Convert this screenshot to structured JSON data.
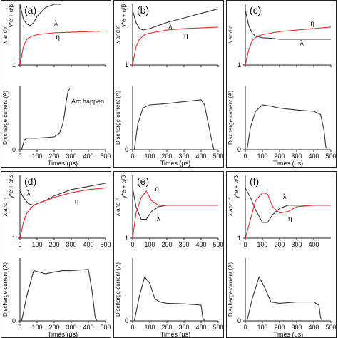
{
  "colors": {
    "lambda": "#333333",
    "eta": "#e03030",
    "current": "#333333"
  },
  "chart_data": [
    {
      "panel": "(a)",
      "type": "line",
      "xlabel": "",
      "ylabel": "λ and η",
      "ylabel_alt": "γ*e + α/β",
      "xlim": [
        0,
        500
      ],
      "ylim": [
        1,
        3
      ],
      "x_ticks": [],
      "y_ticks": [
        1
      ],
      "series": [
        {
          "name": "λ",
          "x": [
            0,
            20,
            40,
            60,
            80,
            100,
            150,
            200,
            240
          ],
          "y": [
            3.0,
            2.5,
            2.35,
            2.3,
            2.4,
            2.6,
            2.9,
            3.0,
            3.0
          ]
        },
        {
          "name": "η",
          "x": [
            0,
            20,
            40,
            70,
            100,
            150,
            200,
            300,
            400,
            500
          ],
          "y": [
            1.0,
            1.6,
            1.85,
            1.95,
            2.0,
            2.03,
            2.06,
            2.08,
            2.1,
            2.12
          ]
        }
      ],
      "label_pos": {
        "λ": [
          200,
          2.3
        ],
        "η": [
          210,
          1.85
        ]
      }
    },
    {
      "panel": "(b)",
      "type": "line",
      "xlabel": "",
      "ylabel": "λ and η",
      "ylabel_alt": "γ*e + α/β",
      "xlim": [
        0,
        500
      ],
      "ylim": [
        1,
        3
      ],
      "x_ticks": [],
      "y_ticks": [
        1
      ],
      "series": [
        {
          "name": "λ",
          "x": [
            0,
            20,
            40,
            60,
            100,
            150,
            200,
            300,
            400,
            500
          ],
          "y": [
            2.8,
            2.4,
            2.2,
            2.15,
            2.2,
            2.3,
            2.4,
            2.55,
            2.7,
            2.85
          ]
        },
        {
          "name": "η",
          "x": [
            0,
            20,
            40,
            70,
            100,
            150,
            200,
            300,
            400,
            500
          ],
          "y": [
            1.0,
            1.6,
            1.85,
            2.0,
            2.05,
            2.1,
            2.15,
            2.2,
            2.22,
            2.25
          ]
        }
      ],
      "label_pos": {
        "λ": [
          210,
          2.2
        ],
        "η": [
          300,
          1.9
        ]
      }
    },
    {
      "panel": "(c)",
      "type": "line",
      "xlabel": "",
      "ylabel": "λ and η",
      "xlim": [
        0,
        500
      ],
      "ylim": [
        1,
        3
      ],
      "x_ticks": [],
      "y_ticks": [
        1
      ],
      "series": [
        {
          "name": "λ",
          "x": [
            0,
            20,
            40,
            60,
            100,
            150,
            200,
            300,
            400,
            500
          ],
          "y": [
            2.8,
            2.3,
            2.05,
            1.95,
            1.9,
            1.88,
            1.85,
            1.85,
            1.85,
            1.85
          ]
        },
        {
          "name": "η",
          "x": [
            0,
            20,
            40,
            70,
            100,
            150,
            200,
            300,
            400,
            500
          ],
          "y": [
            1.0,
            1.5,
            1.8,
            1.95,
            2.0,
            2.05,
            2.1,
            2.15,
            2.2,
            2.25
          ]
        }
      ],
      "label_pos": {
        "λ": [
          320,
          1.65
        ],
        "η": [
          380,
          2.3
        ]
      }
    },
    {
      "panel": "",
      "type": "line",
      "xlabel": "Times (μs)",
      "ylabel": "Discharge current (A)",
      "xlim": [
        0,
        500
      ],
      "ylim": [
        0,
        1
      ],
      "x_ticks": [
        0,
        100,
        200,
        300,
        400,
        500
      ],
      "y_ticks": [
        0
      ],
      "annotation": "Arc happen",
      "series": [
        {
          "name": "",
          "x": [
            0,
            10,
            25,
            40,
            100,
            150,
            200,
            230,
            250,
            260,
            270,
            280,
            290
          ],
          "y": [
            0,
            0,
            0.15,
            0.18,
            0.18,
            0.19,
            0.2,
            0.25,
            0.4,
            0.55,
            0.75,
            0.9,
            0.95
          ]
        }
      ]
    },
    {
      "panel": "",
      "type": "line",
      "xlabel": "Times (μs)",
      "ylabel": "Discharge current (A)",
      "xlim": [
        0,
        500
      ],
      "ylim": [
        0,
        1
      ],
      "x_ticks": [
        0,
        100,
        200,
        300,
        400,
        500
      ],
      "y_ticks": [
        0
      ],
      "series": [
        {
          "name": "",
          "x": [
            0,
            10,
            30,
            60,
            100,
            200,
            300,
            400,
            420,
            450,
            470,
            475
          ],
          "y": [
            0,
            0,
            0.4,
            0.65,
            0.7,
            0.72,
            0.75,
            0.78,
            0.7,
            0.3,
            0.05,
            0
          ]
        }
      ]
    },
    {
      "panel": "",
      "type": "line",
      "xlabel": "Times (μs)",
      "ylabel": "Discharge current (A)",
      "xlim": [
        0,
        500
      ],
      "ylim": [
        0,
        1
      ],
      "x_ticks": [
        0,
        100,
        200,
        300,
        400,
        500
      ],
      "y_ticks": [
        0
      ],
      "series": [
        {
          "name": "",
          "x": [
            0,
            10,
            30,
            60,
            100,
            150,
            200,
            300,
            400,
            440,
            460,
            470,
            480
          ],
          "y": [
            0,
            0,
            0.35,
            0.6,
            0.7,
            0.68,
            0.65,
            0.62,
            0.6,
            0.55,
            0.3,
            0.05,
            0
          ]
        }
      ]
    },
    {
      "panel": "(d)",
      "type": "line",
      "xlabel": "",
      "ylabel": "λ and η",
      "ylabel_alt": "γ*e + α/β",
      "xlim": [
        0,
        500
      ],
      "ylim": [
        1,
        3
      ],
      "x_ticks": [
        0,
        100,
        200,
        300,
        400,
        500
      ],
      "y_ticks": [
        1
      ],
      "series": [
        {
          "name": "λ",
          "x": [
            0,
            20,
            50,
            80,
            100,
            150,
            200,
            300,
            400,
            500
          ],
          "y": [
            2.5,
            2.3,
            2.1,
            2.05,
            2.1,
            2.2,
            2.35,
            2.55,
            2.65,
            2.75
          ]
        },
        {
          "name": "η",
          "x": [
            0,
            20,
            40,
            70,
            100,
            150,
            200,
            300,
            400,
            500
          ],
          "y": [
            1.0,
            1.5,
            1.8,
            2.0,
            2.1,
            2.2,
            2.3,
            2.45,
            2.55,
            2.6
          ]
        }
      ],
      "label_pos": {
        "λ": [
          40,
          2.35
        ],
        "η": [
          320,
          2.1
        ]
      }
    },
    {
      "panel": "(e)",
      "type": "line",
      "xlabel": "",
      "ylabel": "λ and η",
      "ylabel_alt": "γ*e + α/β",
      "xlim": [
        0,
        500
      ],
      "ylim": [
        1,
        3
      ],
      "x_ticks": [
        0,
        100,
        200,
        300,
        400,
        500
      ],
      "y_ticks": [
        1
      ],
      "series": [
        {
          "name": "λ",
          "x": [
            0,
            20,
            50,
            80,
            110,
            150,
            200,
            300,
            400,
            500
          ],
          "y": [
            2.6,
            2.0,
            1.6,
            1.6,
            1.85,
            2.0,
            2.05,
            2.05,
            2.05,
            2.05
          ]
        },
        {
          "name": "η",
          "x": [
            0,
            20,
            50,
            80,
            110,
            150,
            200,
            300,
            400,
            500
          ],
          "y": [
            1.0,
            1.8,
            2.3,
            2.5,
            2.2,
            2.05,
            2.05,
            2.05,
            2.05,
            2.05
          ]
        }
      ],
      "label_pos": {
        "λ": [
          140,
          1.55
        ],
        "η": [
          130,
          2.5
        ]
      }
    },
    {
      "panel": "(f)",
      "type": "line",
      "xlabel": "",
      "ylabel": "λ and η",
      "ylabel_alt": "γ*e + α/β",
      "xlim": [
        0,
        500
      ],
      "ylim": [
        1,
        3
      ],
      "x_ticks": [
        0,
        100,
        200,
        300,
        400
      ],
      "y_ticks": [
        1
      ],
      "series": [
        {
          "name": "λ",
          "x": [
            0,
            30,
            60,
            100,
            130,
            160,
            200,
            250,
            300,
            400,
            500
          ],
          "y": [
            2.6,
            2.3,
            1.9,
            1.5,
            1.5,
            1.75,
            1.95,
            2.05,
            2.05,
            2.05,
            2.05
          ]
        },
        {
          "name": "η",
          "x": [
            0,
            30,
            60,
            100,
            130,
            160,
            200,
            250,
            300,
            400,
            500
          ],
          "y": [
            1.0,
            1.6,
            2.2,
            2.45,
            2.4,
            2.0,
            1.8,
            1.85,
            2.0,
            2.05,
            2.05
          ]
        }
      ],
      "label_pos": {
        "λ": [
          220,
          2.25
        ],
        "η": [
          250,
          1.55
        ]
      }
    },
    {
      "panel": "",
      "type": "line",
      "xlabel": "Times (μs)",
      "ylabel": "Discharge current (A)",
      "xlim": [
        0,
        500
      ],
      "ylim": [
        0,
        1
      ],
      "x_ticks": [
        0,
        100,
        200,
        300,
        400,
        500
      ],
      "y_ticks": [
        0
      ],
      "series": [
        {
          "name": "",
          "x": [
            0,
            10,
            40,
            80,
            110,
            150,
            200,
            250,
            300,
            400,
            420,
            440,
            450
          ],
          "y": [
            0,
            0,
            0.4,
            0.8,
            0.78,
            0.75,
            0.78,
            0.8,
            0.8,
            0.82,
            0.5,
            0.05,
            0
          ]
        }
      ]
    },
    {
      "panel": "",
      "type": "line",
      "xlabel": "Times (μs)",
      "ylabel": "Discharge current (A)",
      "xlim": [
        0,
        500
      ],
      "ylim": [
        0,
        1
      ],
      "x_ticks": [
        0,
        100,
        200,
        300,
        400,
        500
      ],
      "y_ticks": [
        0
      ],
      "series": [
        {
          "name": "",
          "x": [
            0,
            10,
            40,
            70,
            100,
            130,
            160,
            200,
            300,
            400,
            410,
            420
          ],
          "y": [
            0,
            0,
            0.4,
            0.7,
            0.6,
            0.35,
            0.3,
            0.28,
            0.27,
            0.25,
            0.05,
            0
          ]
        }
      ]
    },
    {
      "panel": "",
      "type": "line",
      "xlabel": "Times (μs)",
      "ylabel": "Discharge current (A)",
      "xlim": [
        0,
        500
      ],
      "ylim": [
        0,
        1
      ],
      "x_ticks": [
        0,
        100,
        200,
        300,
        400,
        500
      ],
      "y_ticks": [
        0
      ],
      "series": [
        {
          "name": "",
          "x": [
            0,
            10,
            40,
            80,
            110,
            150,
            200,
            300,
            400,
            430,
            440,
            450
          ],
          "y": [
            0,
            0,
            0.35,
            0.7,
            0.55,
            0.3,
            0.28,
            0.3,
            0.3,
            0.25,
            0.05,
            0
          ]
        }
      ]
    }
  ]
}
